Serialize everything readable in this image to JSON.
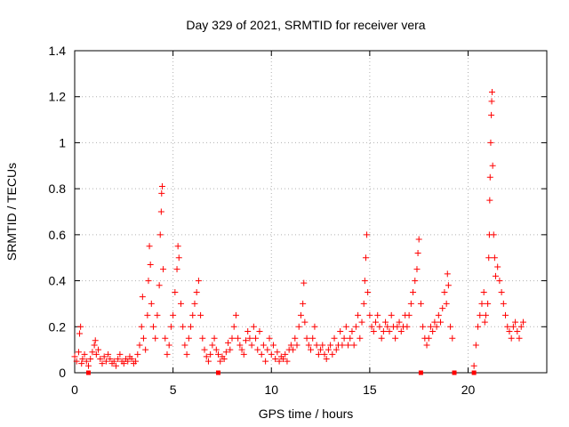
{
  "chart_data": {
    "type": "scatter",
    "title": "Day 329 of 2021, SRMTID for receiver vera",
    "xlabel": "GPS time / hours",
    "ylabel": "SRMTID / TECUs",
    "xlim": [
      0,
      24
    ],
    "ylim": [
      0,
      1.4
    ],
    "xticks": [
      0,
      5,
      10,
      15,
      20
    ],
    "xtick_labels": [
      "0",
      "5",
      "10",
      "15",
      "20"
    ],
    "yticks": [
      0,
      0.2,
      0.4,
      0.6,
      0.8,
      1.0,
      1.2,
      1.4
    ],
    "ytick_labels": [
      "0",
      "0.2",
      "0.4",
      "0.6",
      "0.8",
      "1",
      "1.2",
      "1.4"
    ],
    "grid": true,
    "marker": "+",
    "color": "#ff0000",
    "series": [
      {
        "name": "SRMTID",
        "points": [
          [
            0.0,
            0.07
          ],
          [
            0.1,
            0.05
          ],
          [
            0.2,
            0.09
          ],
          [
            0.25,
            0.17
          ],
          [
            0.3,
            0.2
          ],
          [
            0.35,
            0.04
          ],
          [
            0.4,
            0.06
          ],
          [
            0.5,
            0.08
          ],
          [
            0.6,
            0.05
          ],
          [
            0.7,
            0.03
          ],
          [
            0.8,
            0.06
          ],
          [
            0.9,
            0.09
          ],
          [
            1.0,
            0.12
          ],
          [
            1.05,
            0.14
          ],
          [
            1.1,
            0.08
          ],
          [
            1.2,
            0.1
          ],
          [
            1.3,
            0.06
          ],
          [
            1.4,
            0.04
          ],
          [
            1.5,
            0.07
          ],
          [
            1.6,
            0.05
          ],
          [
            1.7,
            0.08
          ],
          [
            1.8,
            0.06
          ],
          [
            1.9,
            0.04
          ],
          [
            2.0,
            0.05
          ],
          [
            2.1,
            0.03
          ],
          [
            2.2,
            0.06
          ],
          [
            2.3,
            0.08
          ],
          [
            2.4,
            0.05
          ],
          [
            2.5,
            0.04
          ],
          [
            2.6,
            0.06
          ],
          [
            2.7,
            0.05
          ],
          [
            2.8,
            0.07
          ],
          [
            2.9,
            0.06
          ],
          [
            3.0,
            0.04
          ],
          [
            3.1,
            0.05
          ],
          [
            3.2,
            0.08
          ],
          [
            3.3,
            0.12
          ],
          [
            3.4,
            0.2
          ],
          [
            3.45,
            0.33
          ],
          [
            3.5,
            0.15
          ],
          [
            3.6,
            0.1
          ],
          [
            3.7,
            0.25
          ],
          [
            3.75,
            0.4
          ],
          [
            3.8,
            0.55
          ],
          [
            3.85,
            0.47
          ],
          [
            3.9,
            0.3
          ],
          [
            4.0,
            0.2
          ],
          [
            4.1,
            0.15
          ],
          [
            4.2,
            0.25
          ],
          [
            4.3,
            0.38
          ],
          [
            4.35,
            0.6
          ],
          [
            4.4,
            0.7
          ],
          [
            4.42,
            0.78
          ],
          [
            4.45,
            0.81
          ],
          [
            4.5,
            0.45
          ],
          [
            4.6,
            0.15
          ],
          [
            4.7,
            0.08
          ],
          [
            4.8,
            0.12
          ],
          [
            4.9,
            0.2
          ],
          [
            5.0,
            0.25
          ],
          [
            5.1,
            0.35
          ],
          [
            5.2,
            0.45
          ],
          [
            5.25,
            0.55
          ],
          [
            5.3,
            0.5
          ],
          [
            5.4,
            0.3
          ],
          [
            5.5,
            0.2
          ],
          [
            5.6,
            0.12
          ],
          [
            5.7,
            0.08
          ],
          [
            5.8,
            0.15
          ],
          [
            5.9,
            0.2
          ],
          [
            6.0,
            0.25
          ],
          [
            6.1,
            0.3
          ],
          [
            6.2,
            0.35
          ],
          [
            6.3,
            0.4
          ],
          [
            6.4,
            0.25
          ],
          [
            6.5,
            0.15
          ],
          [
            6.6,
            0.1
          ],
          [
            6.7,
            0.07
          ],
          [
            6.8,
            0.05
          ],
          [
            6.9,
            0.08
          ],
          [
            7.0,
            0.12
          ],
          [
            7.1,
            0.15
          ],
          [
            7.2,
            0.1
          ],
          [
            7.3,
            0.08
          ],
          [
            7.4,
            0.05
          ],
          [
            7.5,
            0.07
          ],
          [
            7.6,
            0.06
          ],
          [
            7.7,
            0.09
          ],
          [
            7.8,
            0.13
          ],
          [
            7.9,
            0.1
          ],
          [
            8.0,
            0.15
          ],
          [
            8.1,
            0.2
          ],
          [
            8.2,
            0.25
          ],
          [
            8.3,
            0.15
          ],
          [
            8.4,
            0.12
          ],
          [
            8.5,
            0.1
          ],
          [
            8.6,
            0.08
          ],
          [
            8.7,
            0.14
          ],
          [
            8.8,
            0.18
          ],
          [
            8.9,
            0.15
          ],
          [
            9.0,
            0.12
          ],
          [
            9.1,
            0.2
          ],
          [
            9.2,
            0.15
          ],
          [
            9.3,
            0.1
          ],
          [
            9.4,
            0.18
          ],
          [
            9.5,
            0.08
          ],
          [
            9.6,
            0.12
          ],
          [
            9.7,
            0.05
          ],
          [
            9.8,
            0.1
          ],
          [
            9.9,
            0.15
          ],
          [
            10.0,
            0.08
          ],
          [
            10.1,
            0.12
          ],
          [
            10.2,
            0.06
          ],
          [
            10.3,
            0.09
          ],
          [
            10.4,
            0.05
          ],
          [
            10.5,
            0.07
          ],
          [
            10.6,
            0.06
          ],
          [
            10.7,
            0.08
          ],
          [
            10.8,
            0.05
          ],
          [
            10.9,
            0.1
          ],
          [
            11.0,
            0.12
          ],
          [
            11.1,
            0.1
          ],
          [
            11.2,
            0.15
          ],
          [
            11.3,
            0.12
          ],
          [
            11.4,
            0.2
          ],
          [
            11.5,
            0.25
          ],
          [
            11.6,
            0.3
          ],
          [
            11.65,
            0.39
          ],
          [
            11.7,
            0.22
          ],
          [
            11.8,
            0.15
          ],
          [
            11.9,
            0.12
          ],
          [
            12.0,
            0.1
          ],
          [
            12.1,
            0.15
          ],
          [
            12.2,
            0.2
          ],
          [
            12.3,
            0.12
          ],
          [
            12.4,
            0.08
          ],
          [
            12.5,
            0.1
          ],
          [
            12.6,
            0.12
          ],
          [
            12.7,
            0.08
          ],
          [
            12.8,
            0.06
          ],
          [
            12.9,
            0.1
          ],
          [
            13.0,
            0.12
          ],
          [
            13.1,
            0.08
          ],
          [
            13.2,
            0.15
          ],
          [
            13.3,
            0.1
          ],
          [
            13.4,
            0.12
          ],
          [
            13.5,
            0.18
          ],
          [
            13.6,
            0.12
          ],
          [
            13.7,
            0.15
          ],
          [
            13.8,
            0.2
          ],
          [
            13.9,
            0.12
          ],
          [
            14.0,
            0.15
          ],
          [
            14.1,
            0.18
          ],
          [
            14.2,
            0.12
          ],
          [
            14.3,
            0.2
          ],
          [
            14.4,
            0.25
          ],
          [
            14.5,
            0.15
          ],
          [
            14.6,
            0.22
          ],
          [
            14.7,
            0.3
          ],
          [
            14.75,
            0.4
          ],
          [
            14.8,
            0.5
          ],
          [
            14.85,
            0.6
          ],
          [
            14.9,
            0.35
          ],
          [
            15.0,
            0.25
          ],
          [
            15.1,
            0.2
          ],
          [
            15.2,
            0.18
          ],
          [
            15.3,
            0.22
          ],
          [
            15.4,
            0.25
          ],
          [
            15.5,
            0.2
          ],
          [
            15.6,
            0.15
          ],
          [
            15.7,
            0.18
          ],
          [
            15.8,
            0.22
          ],
          [
            15.9,
            0.2
          ],
          [
            16.0,
            0.18
          ],
          [
            16.1,
            0.25
          ],
          [
            16.2,
            0.2
          ],
          [
            16.3,
            0.15
          ],
          [
            16.4,
            0.2
          ],
          [
            16.5,
            0.22
          ],
          [
            16.6,
            0.18
          ],
          [
            16.7,
            0.2
          ],
          [
            16.8,
            0.25
          ],
          [
            16.9,
            0.2
          ],
          [
            17.0,
            0.25
          ],
          [
            17.1,
            0.3
          ],
          [
            17.2,
            0.35
          ],
          [
            17.3,
            0.4
          ],
          [
            17.4,
            0.45
          ],
          [
            17.45,
            0.52
          ],
          [
            17.5,
            0.58
          ],
          [
            17.6,
            0.3
          ],
          [
            17.7,
            0.2
          ],
          [
            17.8,
            0.15
          ],
          [
            17.9,
            0.12
          ],
          [
            18.0,
            0.15
          ],
          [
            18.1,
            0.2
          ],
          [
            18.2,
            0.18
          ],
          [
            18.3,
            0.22
          ],
          [
            18.4,
            0.2
          ],
          [
            18.5,
            0.25
          ],
          [
            18.6,
            0.22
          ],
          [
            18.7,
            0.28
          ],
          [
            18.8,
            0.35
          ],
          [
            18.9,
            0.3
          ],
          [
            18.95,
            0.43
          ],
          [
            19.0,
            0.38
          ],
          [
            19.1,
            0.2
          ],
          [
            19.2,
            0.15
          ],
          [
            20.3,
            0.03
          ],
          [
            20.4,
            0.12
          ],
          [
            20.5,
            0.2
          ],
          [
            20.6,
            0.25
          ],
          [
            20.7,
            0.3
          ],
          [
            20.8,
            0.35
          ],
          [
            20.85,
            0.22
          ],
          [
            20.9,
            0.25
          ],
          [
            21.0,
            0.3
          ],
          [
            21.05,
            0.5
          ],
          [
            21.08,
            0.6
          ],
          [
            21.1,
            0.75
          ],
          [
            21.12,
            0.85
          ],
          [
            21.15,
            1.0
          ],
          [
            21.18,
            1.12
          ],
          [
            21.2,
            1.18
          ],
          [
            21.22,
            1.22
          ],
          [
            21.25,
            0.9
          ],
          [
            21.3,
            0.6
          ],
          [
            21.35,
            0.5
          ],
          [
            21.4,
            0.42
          ],
          [
            21.5,
            0.46
          ],
          [
            21.6,
            0.4
          ],
          [
            21.7,
            0.35
          ],
          [
            21.8,
            0.3
          ],
          [
            21.9,
            0.25
          ],
          [
            22.0,
            0.2
          ],
          [
            22.1,
            0.18
          ],
          [
            22.2,
            0.15
          ],
          [
            22.3,
            0.2
          ],
          [
            22.4,
            0.22
          ],
          [
            22.5,
            0.18
          ],
          [
            22.6,
            0.15
          ],
          [
            22.7,
            0.2
          ],
          [
            22.8,
            0.22
          ]
        ]
      }
    ],
    "gap_markers_x": [
      0.7,
      7.3,
      17.6,
      19.3,
      20.3
    ]
  }
}
